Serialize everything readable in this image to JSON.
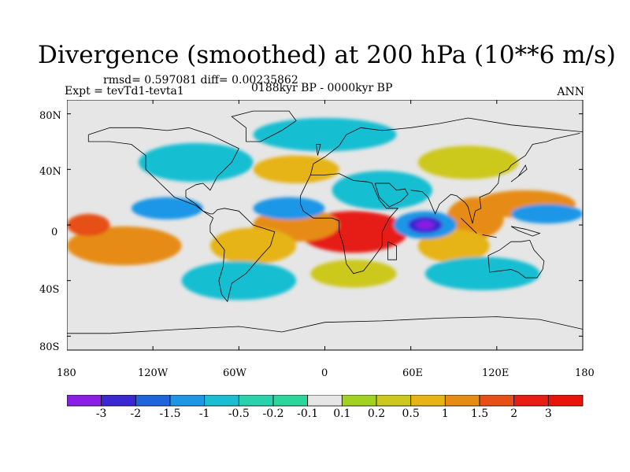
{
  "title": "Divergence (smoothed) at 200 hPa (10**6 m/s)",
  "stats": "rmsd= 0.597081 diff= 0.00235862",
  "experiment": "Expt = tevTd1-tevta1",
  "period": "0188kyr BP - 0000kyr BP",
  "season": "ANN",
  "lat_ticks": [
    "80N",
    "40N",
    "0",
    "40S",
    "80S"
  ],
  "lon_ticks": [
    "180",
    "120W",
    "60W",
    "0",
    "60E",
    "120E",
    "180"
  ],
  "colorbar": {
    "labels": [
      "-3",
      "-2",
      "-1.5",
      "-1",
      "-0.5",
      "-0.2",
      "-0.1",
      "0.1",
      "0.2",
      "0.5",
      "1",
      "1.5",
      "2",
      "3"
    ],
    "colors": [
      "#8b1ee6",
      "#3c28d2",
      "#1e64dc",
      "#1e96e6",
      "#19bed2",
      "#28d2aa",
      "#2bd69a",
      "#e6e6e6",
      "#a0d21e",
      "#cdc81e",
      "#e6b414",
      "#e68c14",
      "#e65014",
      "#e61e14",
      "#e6140a"
    ]
  },
  "field_blobs": [
    {
      "lon": 20,
      "lat": -5,
      "rx": 38,
      "ry": 15,
      "level": 13
    },
    {
      "lon": -20,
      "lat": 0,
      "rx": 30,
      "ry": 12,
      "level": 11
    },
    {
      "lon": -140,
      "lat": -15,
      "rx": 40,
      "ry": 14,
      "level": 11
    },
    {
      "lon": -165,
      "lat": 0,
      "rx": 15,
      "ry": 8,
      "level": 12
    },
    {
      "lon": -50,
      "lat": -15,
      "rx": 30,
      "ry": 13,
      "level": 10
    },
    {
      "lon": 105,
      "lat": 5,
      "rx": 20,
      "ry": 15,
      "level": 11
    },
    {
      "lon": 140,
      "lat": 15,
      "rx": 35,
      "ry": 10,
      "level": 11
    },
    {
      "lon": 90,
      "lat": -15,
      "rx": 25,
      "ry": 12,
      "level": 10
    },
    {
      "lon": 70,
      "lat": 0,
      "rx": 22,
      "ry": 10,
      "level": 3
    },
    {
      "lon": 70,
      "lat": 0,
      "rx": 12,
      "ry": 6,
      "level": 1
    },
    {
      "lon": 70,
      "lat": 0,
      "rx": 6,
      "ry": 3,
      "level": 0
    },
    {
      "lon": -25,
      "lat": 12,
      "rx": 25,
      "ry": 8,
      "level": 3
    },
    {
      "lon": 155,
      "lat": 8,
      "rx": 25,
      "ry": 7,
      "level": 3
    },
    {
      "lon": -110,
      "lat": 12,
      "rx": 25,
      "ry": 8,
      "level": 3
    },
    {
      "lon": -90,
      "lat": 45,
      "rx": 40,
      "ry": 14,
      "level": 4
    },
    {
      "lon": 0,
      "lat": 65,
      "rx": 50,
      "ry": 12,
      "level": 4
    },
    {
      "lon": 40,
      "lat": 25,
      "rx": 35,
      "ry": 14,
      "level": 4
    },
    {
      "lon": 110,
      "lat": -35,
      "rx": 40,
      "ry": 12,
      "level": 4
    },
    {
      "lon": -60,
      "lat": -40,
      "rx": 40,
      "ry": 14,
      "level": 4
    },
    {
      "lon": -20,
      "lat": 40,
      "rx": 30,
      "ry": 10,
      "level": 10
    },
    {
      "lon": 100,
      "lat": 45,
      "rx": 35,
      "ry": 12,
      "level": 9
    },
    {
      "lon": 20,
      "lat": -35,
      "rx": 30,
      "ry": 10,
      "level": 9
    }
  ],
  "coastlines": [
    [
      [
        -165,
        65
      ],
      [
        -150,
        70
      ],
      [
        -130,
        70
      ],
      [
        -110,
        68
      ],
      [
        -95,
        70
      ],
      [
        -80,
        65
      ],
      [
        -70,
        60
      ],
      [
        -60,
        55
      ],
      [
        -65,
        45
      ],
      [
        -75,
        35
      ],
      [
        -80,
        25
      ],
      [
        -85,
        30
      ],
      [
        -90,
        29
      ],
      [
        -97,
        25
      ],
      [
        -97,
        20
      ],
      [
        -90,
        15
      ],
      [
        -85,
        10
      ],
      [
        -80,
        8
      ],
      [
        -78,
        8
      ],
      [
        -75,
        11
      ],
      [
        -70,
        12
      ],
      [
        -60,
        10
      ],
      [
        -50,
        0
      ],
      [
        -35,
        -5
      ],
      [
        -38,
        -15
      ],
      [
        -45,
        -23
      ],
      [
        -55,
        -35
      ],
      [
        -65,
        -42
      ],
      [
        -68,
        -55
      ],
      [
        -72,
        -50
      ],
      [
        -74,
        -40
      ],
      [
        -71,
        -30
      ],
      [
        -70,
        -18
      ],
      [
        -80,
        -5
      ],
      [
        -80,
        0
      ],
      [
        -78,
        5
      ],
      [
        -85,
        10
      ],
      [
        -90,
        14
      ],
      [
        -105,
        20
      ],
      [
        -110,
        25
      ],
      [
        -115,
        30
      ],
      [
        -120,
        35
      ],
      [
        -125,
        40
      ],
      [
        -125,
        50
      ],
      [
        -135,
        58
      ],
      [
        -150,
        60
      ],
      [
        -165,
        60
      ],
      [
        -165,
        65
      ]
    ],
    [
      [
        -10,
        36
      ],
      [
        -8,
        44
      ],
      [
        0,
        49
      ],
      [
        5,
        53
      ],
      [
        10,
        57
      ],
      [
        15,
        65
      ],
      [
        25,
        70
      ],
      [
        40,
        68
      ],
      [
        60,
        70
      ],
      [
        80,
        73
      ],
      [
        100,
        77
      ],
      [
        130,
        72
      ],
      [
        150,
        70
      ],
      [
        170,
        68
      ],
      [
        180,
        67
      ]
    ],
    [
      [
        -10,
        36
      ],
      [
        -17,
        21
      ],
      [
        -17,
        15
      ],
      [
        -15,
        10
      ],
      [
        -8,
        5
      ],
      [
        5,
        5
      ],
      [
        10,
        3
      ],
      [
        10,
        -5
      ],
      [
        13,
        -15
      ],
      [
        15,
        -28
      ],
      [
        20,
        -35
      ],
      [
        27,
        -33
      ],
      [
        33,
        -25
      ],
      [
        40,
        -15
      ],
      [
        40,
        -5
      ],
      [
        45,
        5
      ],
      [
        51,
        12
      ],
      [
        43,
        12
      ],
      [
        38,
        18
      ],
      [
        33,
        30
      ],
      [
        30,
        31
      ],
      [
        20,
        32
      ],
      [
        10,
        37
      ],
      [
        0,
        36
      ],
      [
        -10,
        36
      ]
    ],
    [
      [
        35,
        30
      ],
      [
        45,
        30
      ],
      [
        50,
        25
      ],
      [
        56,
        26
      ],
      [
        58,
        22
      ],
      [
        53,
        17
      ],
      [
        45,
        13
      ],
      [
        38,
        20
      ],
      [
        35,
        30
      ]
    ],
    [
      [
        60,
        25
      ],
      [
        68,
        24
      ],
      [
        72,
        20
      ],
      [
        77,
        8
      ],
      [
        80,
        15
      ],
      [
        88,
        22
      ],
      [
        92,
        21
      ],
      [
        98,
        16
      ],
      [
        100,
        13
      ],
      [
        103,
        1
      ],
      [
        105,
        10
      ],
      [
        109,
        12
      ],
      [
        108,
        20
      ],
      [
        115,
        23
      ],
      [
        121,
        30
      ],
      [
        122,
        37
      ],
      [
        128,
        40
      ],
      [
        130,
        43
      ],
      [
        140,
        50
      ],
      [
        145,
        58
      ],
      [
        155,
        60
      ],
      [
        160,
        62
      ],
      [
        178,
        66
      ]
    ],
    [
      [
        114,
        -22
      ],
      [
        122,
        -18
      ],
      [
        130,
        -12
      ],
      [
        137,
        -12
      ],
      [
        143,
        -11
      ],
      [
        146,
        -18
      ],
      [
        153,
        -26
      ],
      [
        152,
        -32
      ],
      [
        148,
        -38
      ],
      [
        140,
        -38
      ],
      [
        135,
        -34
      ],
      [
        130,
        -32
      ],
      [
        115,
        -34
      ],
      [
        114,
        -22
      ]
    ],
    [
      [
        95,
        5
      ],
      [
        105,
        -5
      ],
      [
        106,
        -6
      ],
      [
        100,
        0
      ],
      [
        95,
        5
      ]
    ],
    [
      [
        110,
        -7
      ],
      [
        115,
        -8
      ],
      [
        120,
        -9
      ],
      [
        110,
        -7
      ]
    ],
    [
      [
        130,
        -1
      ],
      [
        140,
        -3
      ],
      [
        150,
        -6
      ],
      [
        145,
        -8
      ],
      [
        135,
        -4
      ],
      [
        130,
        -1
      ]
    ],
    [
      [
        -180,
        -78
      ],
      [
        -150,
        -78
      ],
      [
        -100,
        -75
      ],
      [
        -60,
        -73
      ],
      [
        -30,
        -77
      ],
      [
        0,
        -70
      ],
      [
        40,
        -69
      ],
      [
        80,
        -67
      ],
      [
        120,
        -66
      ],
      [
        150,
        -68
      ],
      [
        180,
        -75
      ]
    ],
    [
      [
        -55,
        60
      ],
      [
        -45,
        60
      ],
      [
        -30,
        68
      ],
      [
        -20,
        75
      ],
      [
        -25,
        82
      ],
      [
        -50,
        82
      ],
      [
        -65,
        78
      ],
      [
        -55,
        70
      ],
      [
        -55,
        60
      ]
    ],
    [
      [
        -5,
        50
      ],
      [
        -3,
        58
      ],
      [
        -6,
        58
      ],
      [
        -5,
        50
      ]
    ],
    [
      [
        44,
        -12
      ],
      [
        50,
        -15
      ],
      [
        50,
        -25
      ],
      [
        44,
        -25
      ],
      [
        44,
        -12
      ]
    ],
    [
      [
        130,
        31
      ],
      [
        135,
        35
      ],
      [
        141,
        40
      ],
      [
        140,
        43
      ],
      [
        135,
        35
      ],
      [
        130,
        31
      ]
    ]
  ]
}
